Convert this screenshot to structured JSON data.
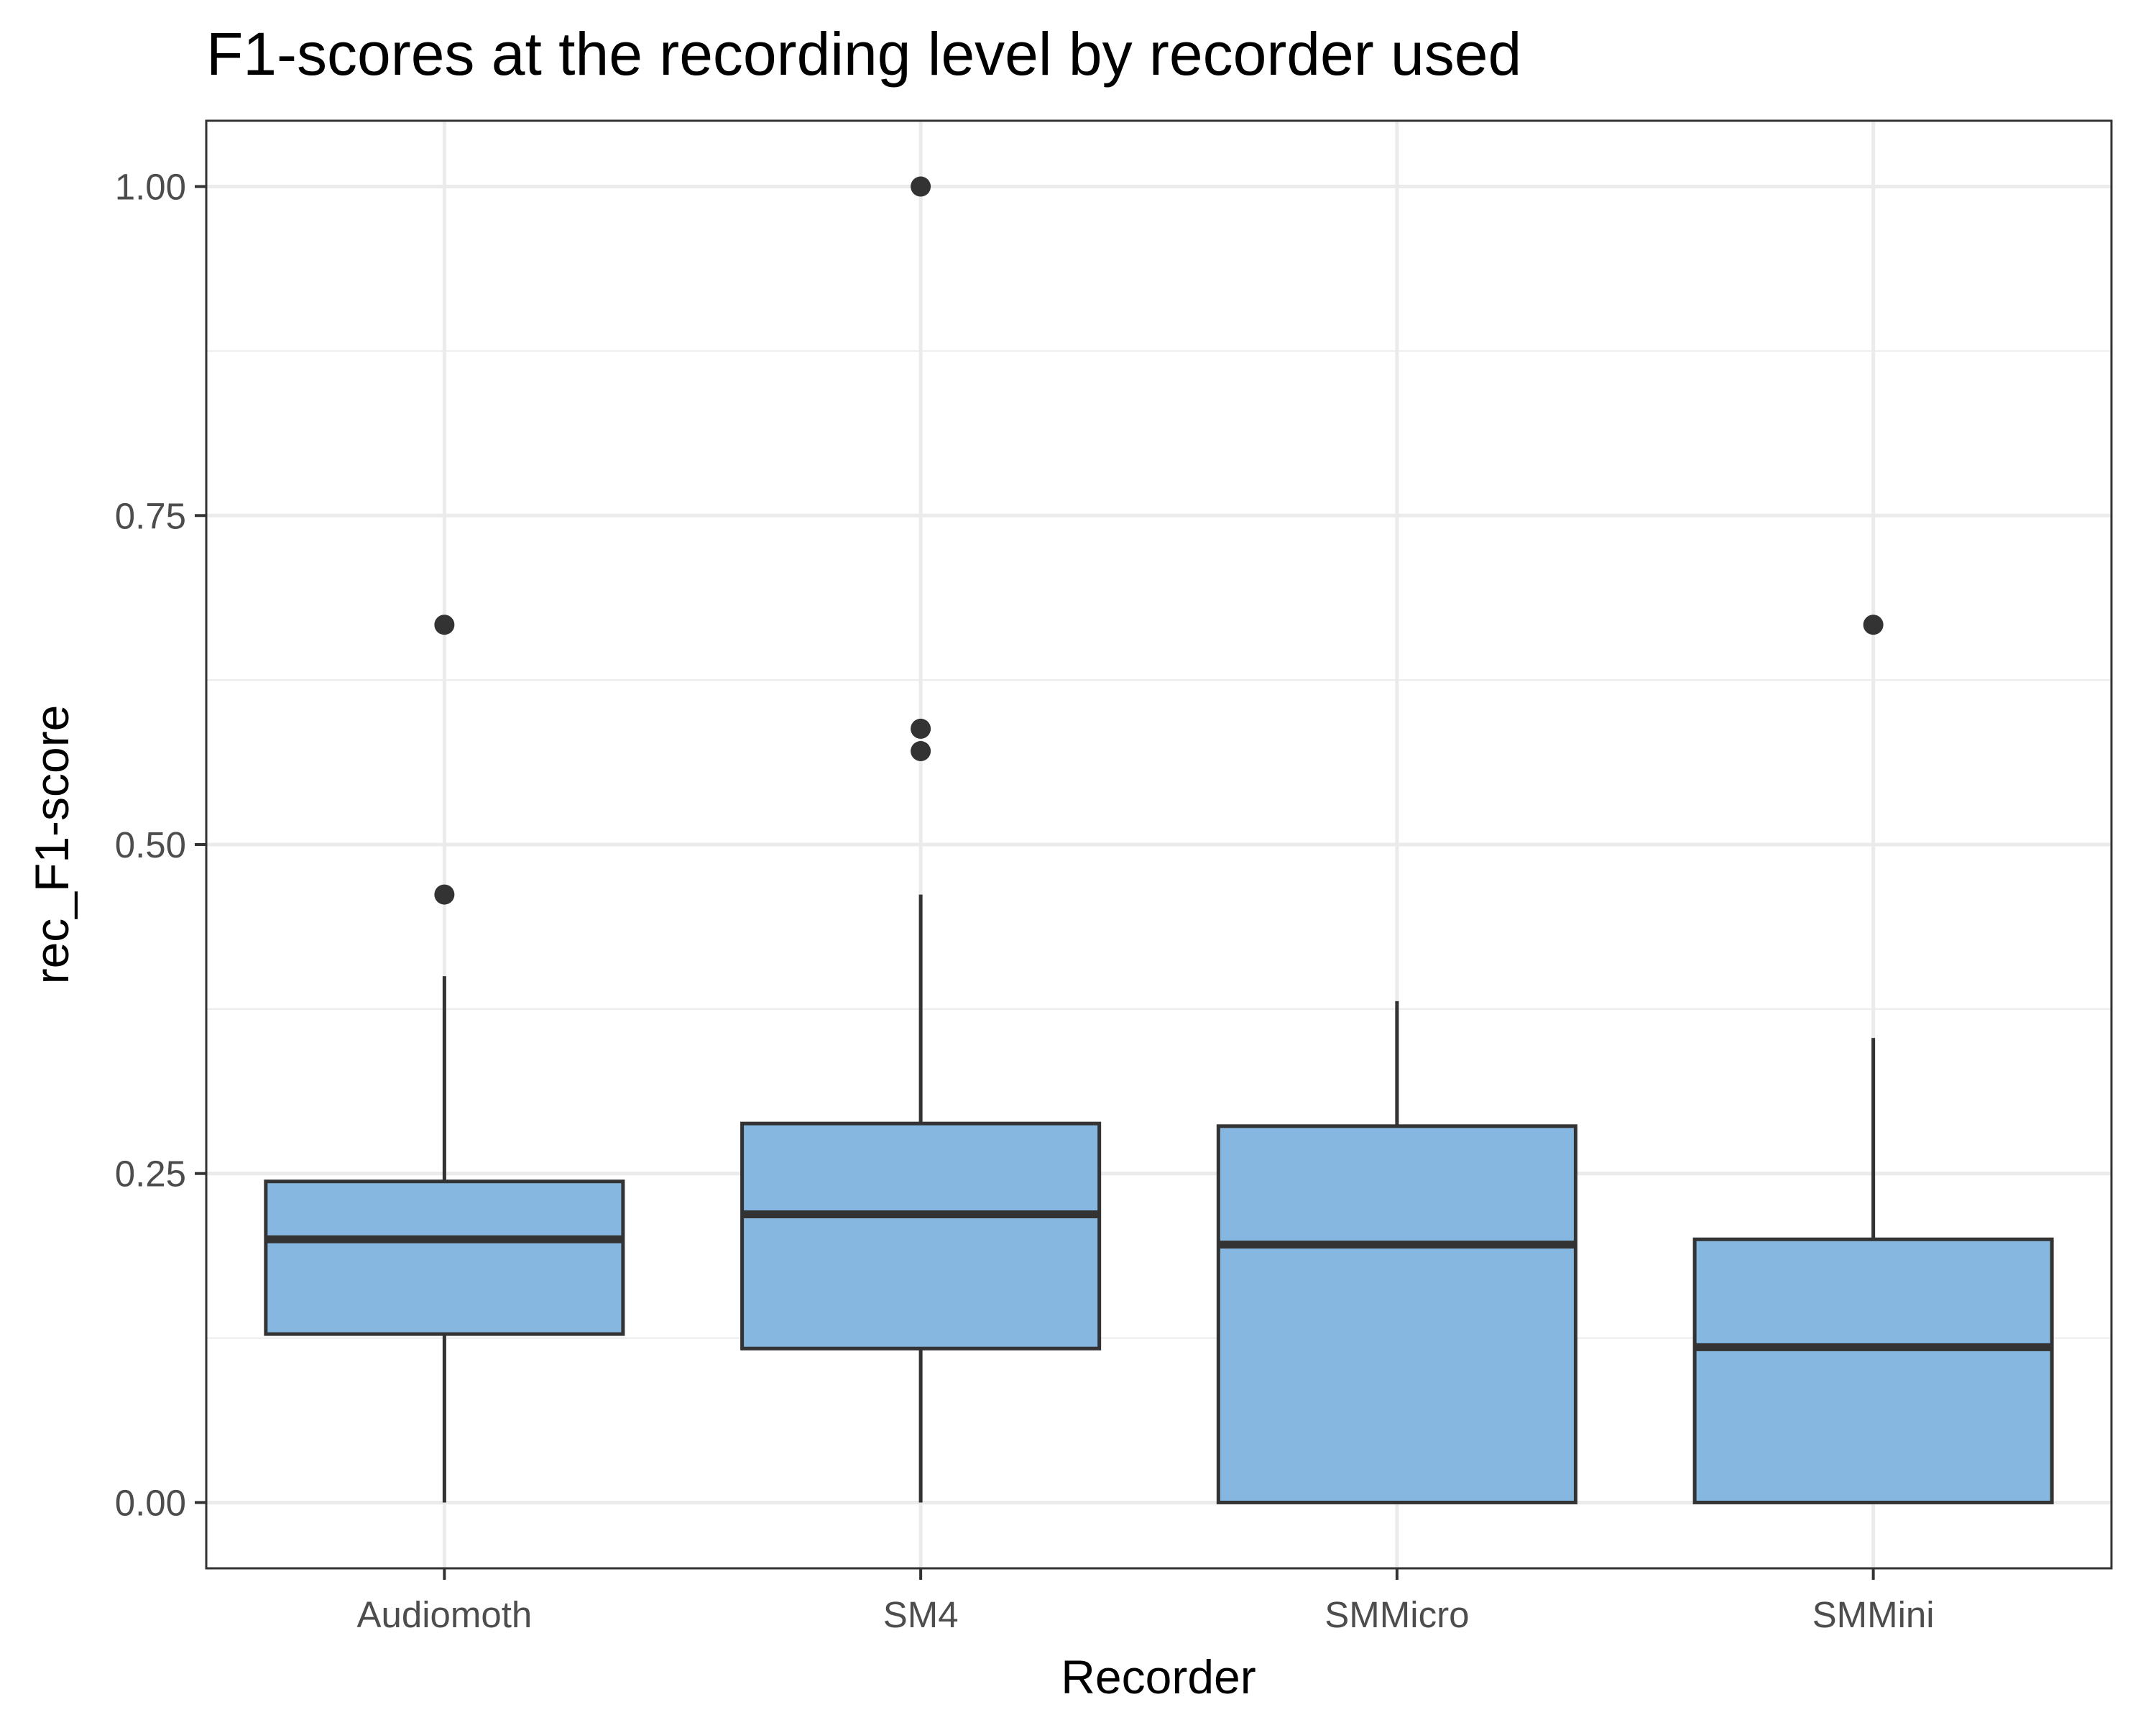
{
  "chart_data": {
    "type": "boxplot",
    "title": "F1-scores at the recording level by recorder used",
    "xlabel": "Recorder",
    "ylabel": "rec_F1-score",
    "categories": [
      "Audiomoth",
      "SM4",
      "SMMicro",
      "SMMini"
    ],
    "ylim": [
      -0.05,
      1.05
    ],
    "yticks": [
      0.0,
      0.25,
      0.5,
      0.75,
      1.0
    ],
    "ytick_labels": [
      "0.00",
      "0.25",
      "0.50",
      "0.75",
      "1.00"
    ],
    "grid": true,
    "legend": "none",
    "box_fill": "#85b7e0",
    "box_stroke": "#333333",
    "boxes": [
      {
        "category": "Audiomoth",
        "whisker_low": 0.0,
        "q1": 0.128,
        "median": 0.2,
        "q3": 0.244,
        "whisker_high": 0.4,
        "outliers": [
          0.462,
          0.667
        ]
      },
      {
        "category": "SM4",
        "whisker_low": 0.0,
        "q1": 0.117,
        "median": 0.219,
        "q3": 0.288,
        "whisker_high": 0.462,
        "outliers": [
          0.571,
          0.588,
          1.0
        ]
      },
      {
        "category": "SMMicro",
        "whisker_low": 0.0,
        "q1": 0.0,
        "median": 0.196,
        "q3": 0.286,
        "whisker_high": 0.381,
        "outliers": []
      },
      {
        "category": "SMMini",
        "whisker_low": 0.0,
        "q1": 0.0,
        "median": 0.118,
        "q3": 0.2,
        "whisker_high": 0.353,
        "outliers": [
          0.667
        ]
      }
    ]
  }
}
